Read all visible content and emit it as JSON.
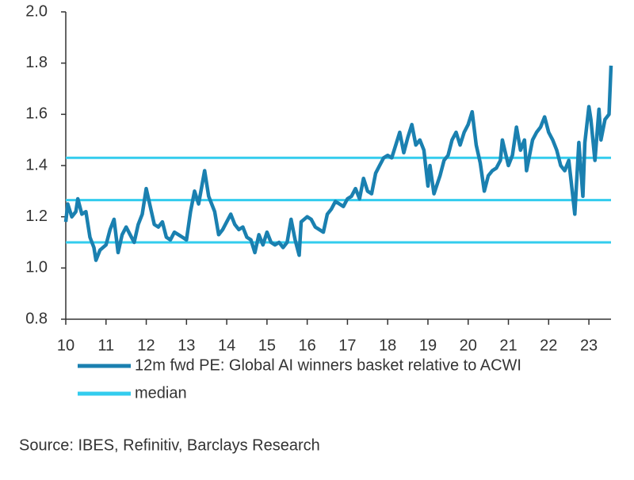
{
  "chart_data": {
    "type": "line",
    "source": "Source: IBES, Refinitiv, Barclays Research",
    "x": [
      10.0,
      10.05,
      10.15,
      10.25,
      10.3,
      10.4,
      10.5,
      10.6,
      10.7,
      10.75,
      10.85,
      11.0,
      11.1,
      11.2,
      11.3,
      11.4,
      11.5,
      11.6,
      11.7,
      11.8,
      11.9,
      12.0,
      12.1,
      12.2,
      12.3,
      12.4,
      12.5,
      12.6,
      12.7,
      12.8,
      12.9,
      13.0,
      13.1,
      13.2,
      13.3,
      13.45,
      13.55,
      13.7,
      13.8,
      13.9,
      14.0,
      14.1,
      14.2,
      14.3,
      14.4,
      14.5,
      14.6,
      14.7,
      14.8,
      14.9,
      15.0,
      15.1,
      15.2,
      15.3,
      15.4,
      15.5,
      15.6,
      15.7,
      15.8,
      15.85,
      16.0,
      16.1,
      16.2,
      16.3,
      16.4,
      16.5,
      16.6,
      16.7,
      16.8,
      16.9,
      17.0,
      17.1,
      17.2,
      17.3,
      17.4,
      17.5,
      17.6,
      17.7,
      17.8,
      17.9,
      18.0,
      18.1,
      18.2,
      18.3,
      18.4,
      18.5,
      18.6,
      18.7,
      18.8,
      18.9,
      19.0,
      19.05,
      19.15,
      19.3,
      19.4,
      19.5,
      19.6,
      19.7,
      19.8,
      19.9,
      20.0,
      20.1,
      20.2,
      20.3,
      20.4,
      20.5,
      20.6,
      20.7,
      20.8,
      20.85,
      21.0,
      21.1,
      21.2,
      21.3,
      21.4,
      21.45,
      21.6,
      21.7,
      21.8,
      21.9,
      22.0,
      22.1,
      22.2,
      22.3,
      22.4,
      22.5,
      22.6,
      22.65,
      22.75,
      22.85,
      22.9,
      23.0,
      23.05,
      23.15,
      23.25,
      23.3,
      23.4,
      23.5,
      23.55
    ],
    "series": [
      {
        "name": "12m fwd PE: Global AI winners basket relative to ACWI",
        "color": "#1a80b0",
        "values": [
          1.18,
          1.25,
          1.2,
          1.22,
          1.27,
          1.21,
          1.22,
          1.12,
          1.08,
          1.03,
          1.07,
          1.09,
          1.15,
          1.19,
          1.06,
          1.13,
          1.16,
          1.13,
          1.1,
          1.17,
          1.21,
          1.31,
          1.24,
          1.17,
          1.16,
          1.18,
          1.12,
          1.11,
          1.14,
          1.13,
          1.12,
          1.11,
          1.22,
          1.3,
          1.25,
          1.38,
          1.28,
          1.22,
          1.13,
          1.15,
          1.18,
          1.21,
          1.17,
          1.15,
          1.16,
          1.12,
          1.11,
          1.06,
          1.13,
          1.09,
          1.14,
          1.1,
          1.09,
          1.1,
          1.08,
          1.1,
          1.19,
          1.11,
          1.05,
          1.18,
          1.2,
          1.19,
          1.16,
          1.15,
          1.14,
          1.21,
          1.23,
          1.26,
          1.25,
          1.24,
          1.27,
          1.28,
          1.31,
          1.27,
          1.35,
          1.3,
          1.29,
          1.37,
          1.4,
          1.43,
          1.44,
          1.43,
          1.48,
          1.53,
          1.45,
          1.51,
          1.56,
          1.48,
          1.5,
          1.46,
          1.32,
          1.4,
          1.29,
          1.36,
          1.42,
          1.44,
          1.5,
          1.53,
          1.48,
          1.53,
          1.56,
          1.61,
          1.48,
          1.41,
          1.3,
          1.36,
          1.38,
          1.39,
          1.42,
          1.5,
          1.4,
          1.44,
          1.55,
          1.46,
          1.5,
          1.38,
          1.5,
          1.53,
          1.55,
          1.59,
          1.53,
          1.5,
          1.46,
          1.4,
          1.38,
          1.42,
          1.28,
          1.21,
          1.49,
          1.28,
          1.49,
          1.63,
          1.58,
          1.42,
          1.62,
          1.5,
          1.58,
          1.6,
          1.79
        ]
      },
      {
        "name": "median",
        "color": "#33ccee",
        "lines": [
          1.43,
          1.265,
          1.1
        ]
      }
    ],
    "xlim": [
      10,
      23.55
    ],
    "xticks": [
      10,
      11,
      12,
      13,
      14,
      15,
      16,
      17,
      18,
      19,
      20,
      21,
      22,
      23
    ],
    "ylim": [
      0.8,
      2.0
    ],
    "yticks": [
      {
        "value": 0.8,
        "label": "0.8"
      },
      {
        "value": 1.0,
        "label": "1.0"
      },
      {
        "value": 1.2,
        "label": "1.2"
      },
      {
        "value": 1.4,
        "label": "1.4"
      },
      {
        "value": 1.6,
        "label": "1.6"
      },
      {
        "value": 1.8,
        "label": "1.8"
      },
      {
        "value": 2.0,
        "label": "2.0"
      }
    ]
  }
}
